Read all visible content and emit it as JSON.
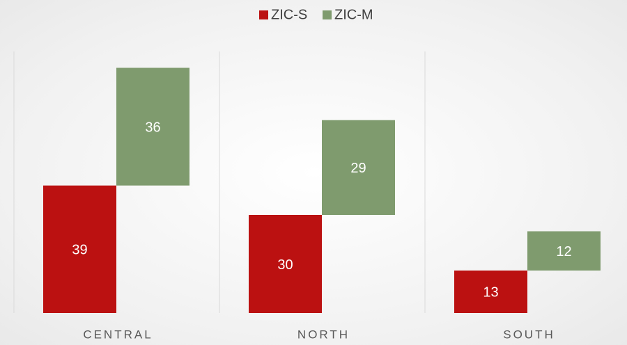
{
  "chart_data": {
    "type": "bar",
    "stacked": true,
    "categories": [
      "CENTRAL",
      "NORTH",
      "SOUTH"
    ],
    "series": [
      {
        "name": "ZIC-S",
        "color": "#bb1111",
        "values": [
          39,
          30,
          13
        ]
      },
      {
        "name": "ZIC-M",
        "color": "#7f9b6e",
        "values": [
          36,
          29,
          12
        ]
      }
    ],
    "ylim": [
      0,
      80
    ]
  }
}
